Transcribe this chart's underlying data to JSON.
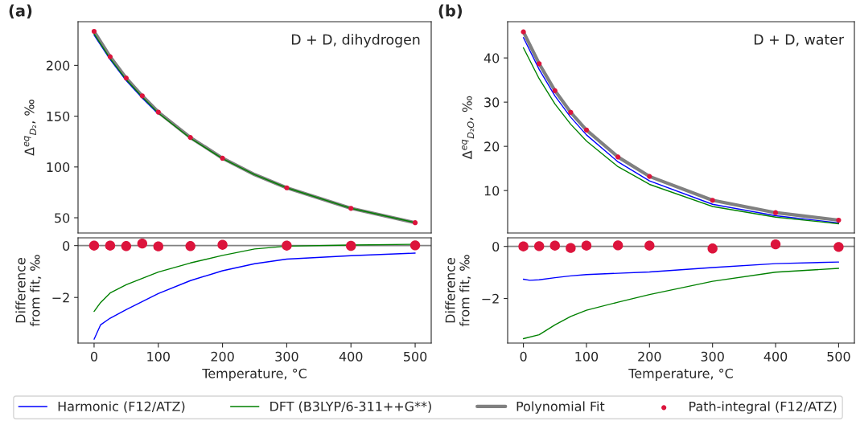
{
  "chart_data": [
    {
      "type": "line",
      "annotations": [
        "(a)",
        "D + D, dihydrogen"
      ],
      "ylabel": "Δ$^{eq}$$_{D₂}$, ‰",
      "xlim": [
        -25,
        525
      ],
      "xticks": [
        0,
        100,
        200,
        300,
        400,
        500
      ],
      "ylim": [
        35,
        243
      ],
      "yticks": [
        50,
        100,
        150,
        200
      ],
      "tick_labels": "y",
      "series": [
        {
          "type": "line",
          "color": "#808080",
          "x": [
            0,
            25,
            50,
            75,
            100,
            150,
            200,
            250,
            300,
            400,
            500
          ],
          "values": [
            233.5,
            208.5,
            187.5,
            170,
            154,
            129,
            108.6,
            92.5,
            79.5,
            59.3,
            45.1
          ]
        },
        {
          "color": "#0000ff",
          "x": [
            0,
            25,
            50,
            75,
            100
          ],
          "values": [
            229.9,
            205.7,
            185.0,
            167.9,
            152.2
          ]
        },
        {
          "type": "line",
          "color": "#008000",
          "x": [
            0,
            25,
            50,
            75,
            100,
            150,
            200,
            250,
            300,
            400,
            500
          ],
          "values": [
            231.0,
            206.7,
            186.0,
            168.8,
            153.0,
            128.3,
            108.2,
            92.4,
            79.5,
            59.3,
            45.2
          ]
        },
        {
          "type": "scatter",
          "color": "#dc143c",
          "x": [
            0,
            25,
            50,
            75,
            100,
            150,
            200,
            300,
            400,
            500
          ],
          "values": [
            233.5,
            208.5,
            187.5,
            170,
            154,
            129,
            108.6,
            79.5,
            59.3,
            45.1
          ]
        }
      ]
    },
    {
      "type": "line",
      "annotations": [
        "(b)",
        "D + D, water"
      ],
      "ylabel": "Δ$^{eq}$$_{D₂O}$, ‰",
      "xlim": [
        -25,
        525
      ],
      "xticks": [
        0,
        100,
        200,
        300,
        400,
        500
      ],
      "ylim": [
        0.4,
        48.2
      ],
      "yticks": [
        10,
        20,
        30,
        40
      ],
      "tick_labels": "y",
      "legend": "bottom",
      "series": [
        {
          "type": "line",
          "name": "Harmonic (F12/ATZ)",
          "color": "#0000ff",
          "x": [
            0,
            25,
            50,
            75,
            100,
            150,
            200,
            300,
            400,
            500
          ],
          "values": [
            44.6,
            37.4,
            31.4,
            26.6,
            22.6,
            16.5,
            12.2,
            6.9,
            4.3,
            2.7
          ]
        },
        {
          "type": "line",
          "name": "DFT (B3LYP/6-311++G**)",
          "color": "#008000",
          "x": [
            0,
            25,
            50,
            75,
            100,
            150,
            200,
            300,
            400,
            500
          ],
          "values": [
            42.3,
            35.3,
            29.6,
            25.0,
            21.2,
            15.4,
            11.4,
            6.4,
            4.0,
            2.5
          ]
        },
        {
          "type": "line",
          "name": "Polynomial Fit",
          "color": "#808080",
          "x": [
            0,
            25,
            50,
            75,
            100,
            150,
            200,
            300,
            400,
            500
          ],
          "values": [
            45.9,
            38.7,
            32.6,
            27.7,
            23.7,
            17.6,
            13.2,
            7.8,
            5.0,
            3.3
          ]
        },
        {
          "type": "scatter",
          "name": "Path-integral (F12/ATZ)",
          "color": "#dc143c",
          "x": [
            0,
            25,
            50,
            75,
            100,
            150,
            200,
            300,
            400,
            500
          ],
          "values": [
            45.9,
            38.7,
            32.6,
            27.7,
            23.7,
            17.6,
            13.2,
            7.8,
            5.0,
            3.3
          ]
        }
      ]
    },
    {
      "type": "line",
      "xlabel": "Temperature, °C",
      "ylabel": "Difference\nfrom fit, ‰",
      "xlim": [
        -25,
        525
      ],
      "xticks": [
        0,
        100,
        200,
        300,
        400,
        500
      ],
      "ylim": [
        -3.76,
        0.3
      ],
      "yticks": [
        {
          "value": -2,
          "label": "−2"
        },
        0
      ],
      "ref_lines": [
        {
          "axis": "y",
          "value": 0,
          "color": "#808080"
        }
      ],
      "series": [
        {
          "type": "line",
          "color": "#0000ff",
          "x": [
            0,
            10,
            25,
            50,
            100,
            150,
            200,
            250,
            300,
            400,
            500
          ],
          "values": [
            -3.61,
            -3.06,
            -2.8,
            -2.47,
            -1.85,
            -1.35,
            -0.97,
            -0.7,
            -0.52,
            -0.39,
            -0.29
          ]
        },
        {
          "type": "line",
          "color": "#008000",
          "x": [
            0,
            10,
            25,
            50,
            100,
            150,
            200,
            250,
            300,
            400,
            500
          ],
          "values": [
            -2.54,
            -2.2,
            -1.83,
            -1.51,
            -1.02,
            -0.67,
            -0.38,
            -0.13,
            -0.02,
            0.02,
            0.05
          ]
        },
        {
          "type": "scatter",
          "color": "#dc143c",
          "x": [
            0,
            25,
            50,
            75,
            100,
            150,
            200,
            300,
            400,
            500
          ],
          "values": [
            0,
            0,
            -0.02,
            0.08,
            -0.03,
            -0.02,
            0.03,
            0,
            -0.01,
            0.01
          ]
        }
      ]
    },
    {
      "type": "line",
      "xlabel": "Temperature, °C",
      "ylabel": "Difference\nfrom fit, ‰",
      "xlim": [
        -25,
        525
      ],
      "xticks": [
        0,
        100,
        200,
        300,
        400,
        500
      ],
      "ylim": [
        -3.71,
        0.33
      ],
      "yticks": [
        {
          "value": -2,
          "label": "−2"
        },
        0
      ],
      "ref_lines": [
        {
          "axis": "y",
          "value": 0,
          "color": "#808080"
        }
      ],
      "series": [
        {
          "type": "line",
          "color": "#0000ff",
          "x": [
            0,
            10,
            25,
            50,
            75,
            100,
            150,
            200,
            300,
            400,
            500
          ],
          "values": [
            -1.26,
            -1.3,
            -1.28,
            -1.2,
            -1.13,
            -1.08,
            -1.03,
            -0.98,
            -0.81,
            -0.66,
            -0.6
          ]
        },
        {
          "type": "line",
          "color": "#008000",
          "x": [
            0,
            25,
            50,
            75,
            100,
            150,
            200,
            300,
            400,
            500
          ],
          "values": [
            -3.54,
            -3.39,
            -3.01,
            -2.69,
            -2.45,
            -2.14,
            -1.85,
            -1.34,
            -0.99,
            -0.84
          ]
        },
        {
          "type": "scatter",
          "color": "#dc143c",
          "x": [
            0,
            25,
            50,
            75,
            100,
            150,
            200,
            300,
            400,
            500
          ],
          "values": [
            0,
            0.01,
            0.03,
            -0.06,
            0.03,
            0.04,
            0.03,
            -0.08,
            0.08,
            -0.02
          ]
        }
      ]
    }
  ]
}
